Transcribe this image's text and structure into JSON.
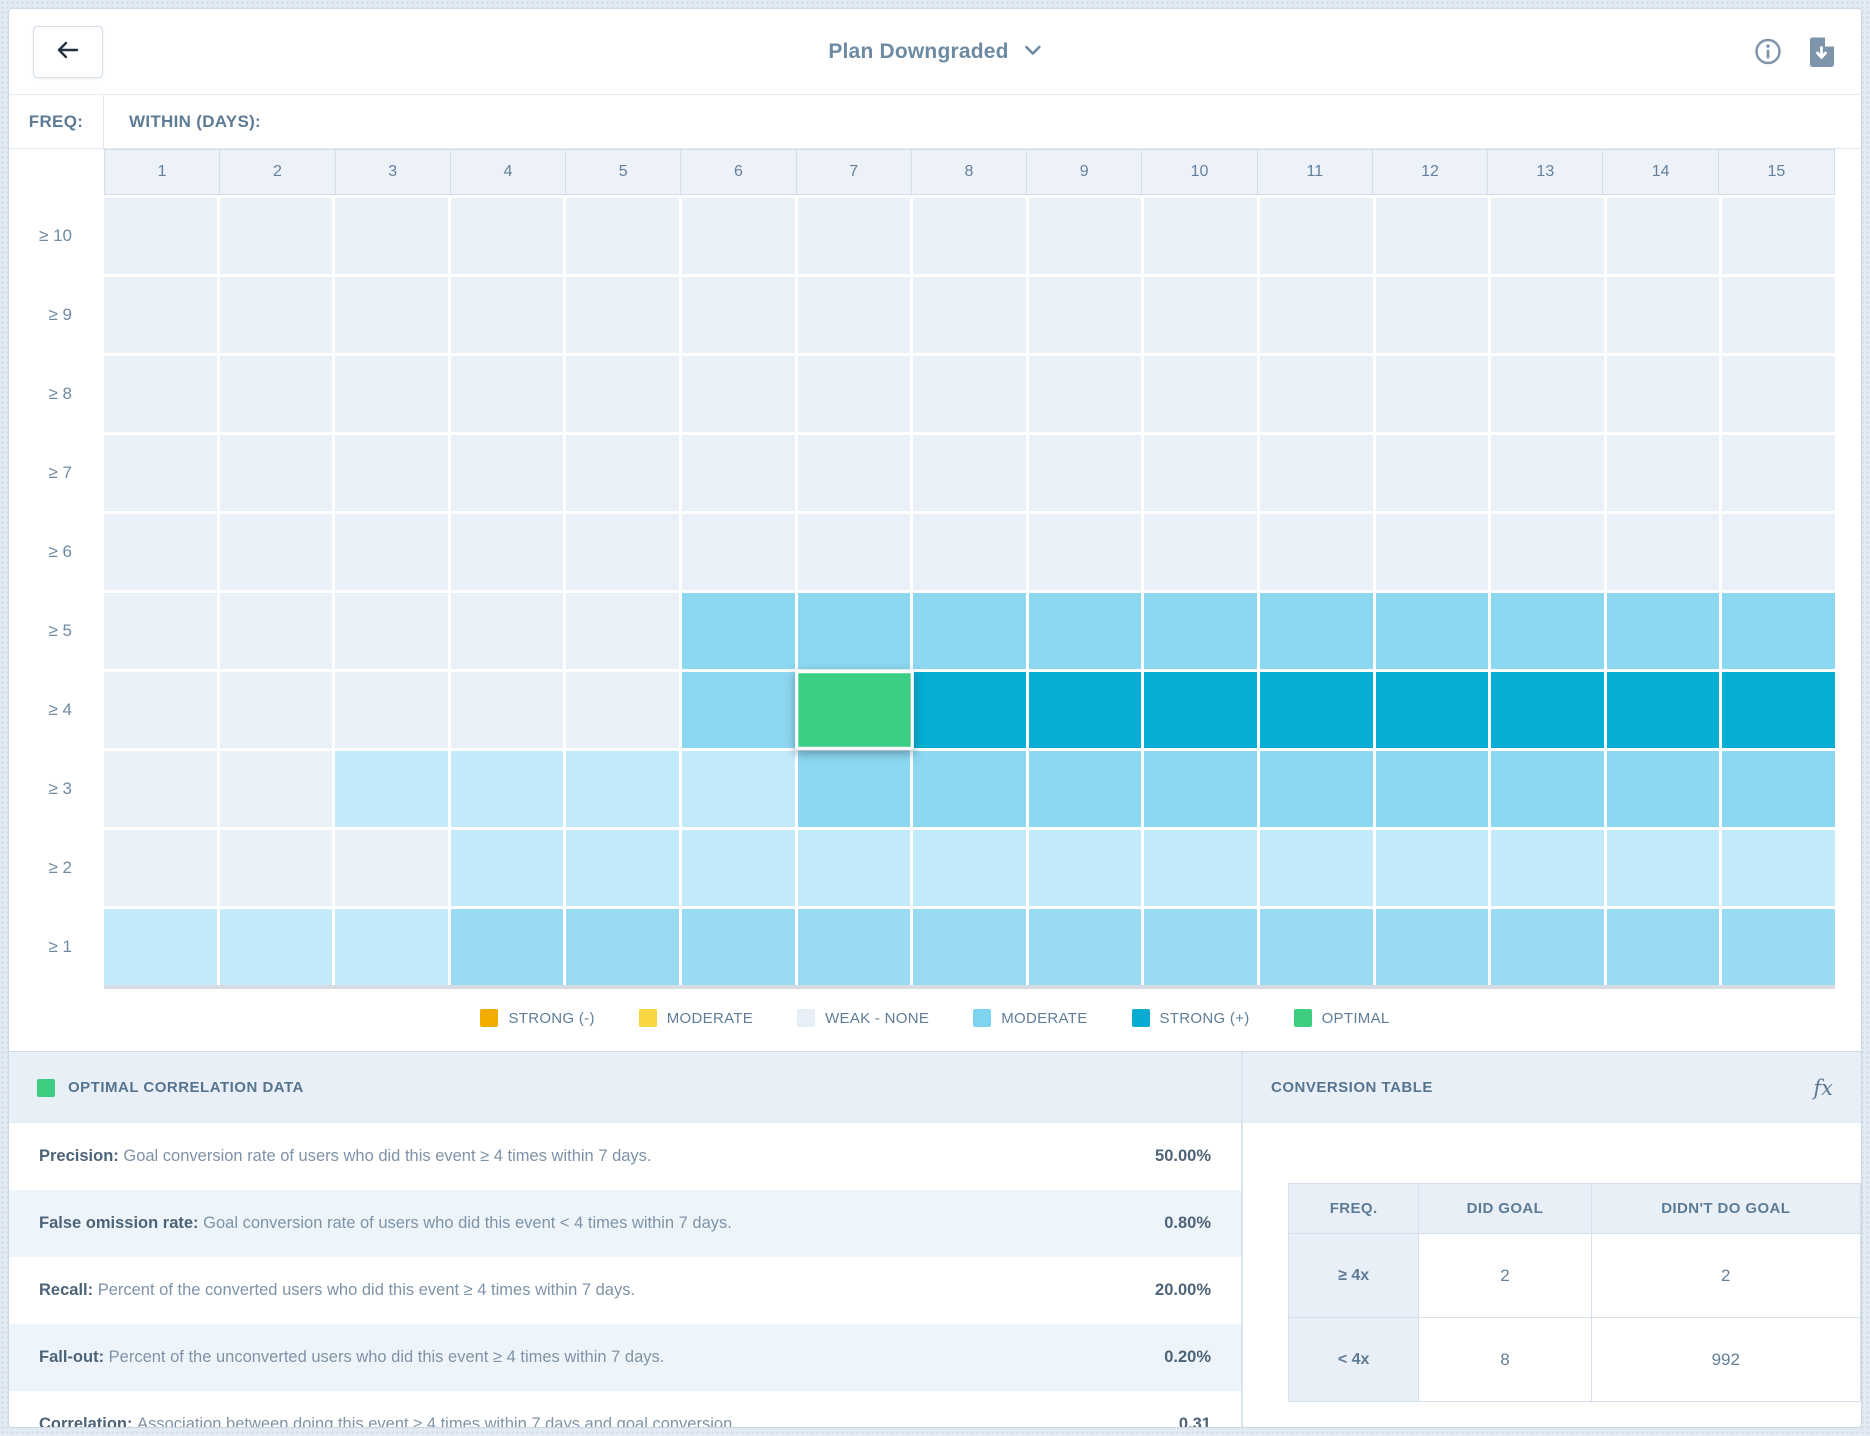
{
  "topbar": {
    "title": "Plan Downgraded"
  },
  "heatmap": {
    "freq_label": "FREQ:",
    "within_label": "WITHIN (DAYS):",
    "columns": [
      "1",
      "2",
      "3",
      "4",
      "5",
      "6",
      "7",
      "8",
      "9",
      "10",
      "11",
      "12",
      "13",
      "14",
      "15"
    ],
    "palette": {
      "w": "#e9f0f8",
      "l": "#c3eaf8",
      "m": "#98dbf2",
      "M": "#8cd8f0",
      "S": "#04afd3",
      "O": "#3bce82"
    },
    "rows": [
      {
        "label": "≥ 10",
        "cells": [
          "w",
          "w",
          "w",
          "w",
          "w",
          "w",
          "w",
          "w",
          "w",
          "w",
          "w",
          "w",
          "w",
          "w",
          "w"
        ]
      },
      {
        "label": "≥ 9",
        "cells": [
          "w",
          "w",
          "w",
          "w",
          "w",
          "w",
          "w",
          "w",
          "w",
          "w",
          "w",
          "w",
          "w",
          "w",
          "w"
        ]
      },
      {
        "label": "≥ 8",
        "cells": [
          "w",
          "w",
          "w",
          "w",
          "w",
          "w",
          "w",
          "w",
          "w",
          "w",
          "w",
          "w",
          "w",
          "w",
          "w"
        ]
      },
      {
        "label": "≥ 7",
        "cells": [
          "w",
          "w",
          "w",
          "w",
          "w",
          "w",
          "w",
          "w",
          "w",
          "w",
          "w",
          "w",
          "w",
          "w",
          "w"
        ]
      },
      {
        "label": "≥ 6",
        "cells": [
          "w",
          "w",
          "w",
          "w",
          "w",
          "w",
          "w",
          "w",
          "w",
          "w",
          "w",
          "w",
          "w",
          "w",
          "w"
        ]
      },
      {
        "label": "≥ 5",
        "cells": [
          "w",
          "w",
          "w",
          "w",
          "w",
          "M",
          "M",
          "M",
          "M",
          "M",
          "M",
          "M",
          "M",
          "M",
          "M"
        ]
      },
      {
        "label": "≥ 4",
        "cells": [
          "w",
          "w",
          "w",
          "w",
          "w",
          "M",
          "O",
          "S",
          "S",
          "S",
          "S",
          "S",
          "S",
          "S",
          "S"
        ]
      },
      {
        "label": "≥ 3",
        "cells": [
          "w",
          "w",
          "l",
          "l",
          "l",
          "l",
          "M",
          "M",
          "M",
          "M",
          "M",
          "M",
          "M",
          "M",
          "M"
        ]
      },
      {
        "label": "≥ 2",
        "cells": [
          "w",
          "w",
          "w",
          "l",
          "l",
          "l",
          "l",
          "l",
          "l",
          "l",
          "l",
          "l",
          "l",
          "l",
          "l"
        ]
      },
      {
        "label": "≥ 1",
        "cells": [
          "l",
          "l",
          "l",
          "m",
          "m",
          "m",
          "m",
          "m",
          "m",
          "m",
          "m",
          "m",
          "m",
          "m",
          "m"
        ]
      }
    ],
    "selected_cell": {
      "row_label": "≥ 4",
      "column": "7"
    }
  },
  "legend": [
    {
      "label": "STRONG (-)",
      "color": "#f0ad00"
    },
    {
      "label": "MODERATE",
      "color": "#f8d63f"
    },
    {
      "label": "WEAK - NONE",
      "color": "#e7eef7"
    },
    {
      "label": "MODERATE",
      "color": "#7ed4ee"
    },
    {
      "label": "STRONG (+)",
      "color": "#09abd2"
    },
    {
      "label": "OPTIMAL",
      "color": "#3ecd81"
    }
  ],
  "correlation_panel": {
    "title": "OPTIMAL CORRELATION DATA",
    "swatch_color": "#3ecd81",
    "stats": [
      {
        "label": "Precision:",
        "description": "Goal conversion rate of users who did this event ≥ 4 times within 7 days.",
        "value": "50.00%"
      },
      {
        "label": "False omission rate:",
        "description": "Goal conversion rate of users who did this event < 4 times within 7 days.",
        "value": "0.80%"
      },
      {
        "label": "Recall:",
        "description": "Percent of the converted users who did this event ≥ 4 times within 7 days.",
        "value": "20.00%"
      },
      {
        "label": "Fall-out:",
        "description": "Percent of the unconverted users who did this event ≥ 4 times within 7 days.",
        "value": "0.20%"
      },
      {
        "label": "Correlation:",
        "description": "Association between doing this event ≥ 4 times within 7 days and goal conversion.",
        "value": "0.31"
      }
    ]
  },
  "conversion_panel": {
    "title": "CONVERSION TABLE",
    "fx_label": "fx",
    "table": {
      "headers": [
        "FREQ.",
        "DID GOAL",
        "DIDN'T DO GOAL"
      ],
      "rows": [
        {
          "freq": "≥ 4x",
          "did_goal": "2",
          "didnt_do_goal": "2"
        },
        {
          "freq": "< 4x",
          "did_goal": "8",
          "didnt_do_goal": "992"
        }
      ]
    }
  }
}
